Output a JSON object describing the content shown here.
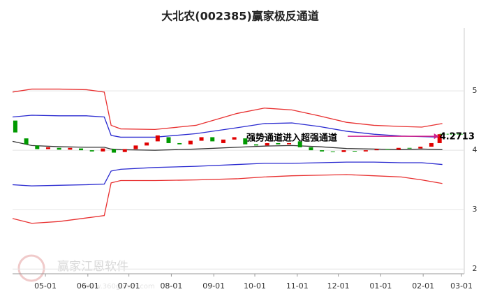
{
  "chart_data": {
    "type": "candlestick",
    "title": "大北农(002385)赢家极反通道",
    "watermark": "赢家江恩软件",
    "watermark_url": "www.360ganen.com",
    "annotation": "强势通道进入超强通道",
    "last_price": 4.2713,
    "xlim": [
      -24,
      306
    ],
    "xticks": [
      {
        "value": 0,
        "label": "05-01"
      },
      {
        "value": 31,
        "label": "06-01"
      },
      {
        "value": 61,
        "label": "07-01"
      },
      {
        "value": 92,
        "label": "08-01"
      },
      {
        "value": 123,
        "label": "09-01"
      },
      {
        "value": 153,
        "label": "10-01"
      },
      {
        "value": 184,
        "label": "11-01"
      },
      {
        "value": 214,
        "label": "12-01"
      },
      {
        "value": 245,
        "label": "01-01"
      },
      {
        "value": 276,
        "label": "02-01"
      },
      {
        "value": 304,
        "label": "03-01"
      }
    ],
    "ylim": [
      1.92,
      6.06
    ],
    "yticks": [
      2,
      3,
      4,
      5
    ],
    "grid": true,
    "band_x": [
      -24,
      -10,
      10,
      30,
      43,
      48,
      55,
      80,
      110,
      140,
      160,
      180,
      200,
      220,
      240,
      260,
      275,
      290
    ],
    "bands": [
      {
        "color": "#e83030",
        "values": [
          4.98,
          5.03,
          5.03,
          5.02,
          4.98,
          4.42,
          4.36,
          4.35,
          4.42,
          4.62,
          4.71,
          4.68,
          4.58,
          4.47,
          4.42,
          4.4,
          4.39,
          4.45
        ]
      },
      {
        "color": "#2a2ad0",
        "values": [
          4.56,
          4.59,
          4.58,
          4.58,
          4.56,
          4.25,
          4.22,
          4.22,
          4.28,
          4.38,
          4.45,
          4.46,
          4.4,
          4.32,
          4.27,
          4.24,
          4.23,
          4.22
        ]
      },
      {
        "color": "#333333",
        "values": [
          4.15,
          4.08,
          4.06,
          4.05,
          4.05,
          4.02,
          4.01,
          4.0,
          4.02,
          4.05,
          4.07,
          4.08,
          4.06,
          4.03,
          4.02,
          4.01,
          4.02,
          4.01
        ]
      },
      {
        "color": "#2a2ad0",
        "values": [
          3.42,
          3.4,
          3.41,
          3.42,
          3.43,
          3.65,
          3.68,
          3.71,
          3.73,
          3.76,
          3.78,
          3.78,
          3.79,
          3.8,
          3.8,
          3.79,
          3.79,
          3.76
        ]
      },
      {
        "color": "#e83030",
        "values": [
          2.85,
          2.77,
          2.8,
          2.86,
          2.9,
          3.45,
          3.49,
          3.49,
          3.5,
          3.52,
          3.55,
          3.57,
          3.58,
          3.59,
          3.57,
          3.55,
          3.5,
          3.44
        ]
      }
    ],
    "up_color": "#e00000",
    "down_color": "#009900",
    "candles": {
      "x": [
        -22,
        -14,
        -6,
        2,
        10,
        18,
        26,
        34,
        42,
        50,
        58,
        66,
        74,
        82,
        90,
        98,
        106,
        114,
        122,
        130,
        138,
        146,
        154,
        162,
        170,
        178,
        186,
        194,
        202,
        210,
        218,
        226,
        234,
        242,
        250,
        258,
        266,
        274,
        282,
        288
      ],
      "open": [
        4.5,
        4.2,
        4.08,
        4.02,
        4.04,
        4.01,
        4.03,
        4.0,
        3.98,
        4.02,
        3.97,
        4.02,
        4.08,
        4.15,
        4.22,
        4.12,
        4.1,
        4.16,
        4.22,
        4.12,
        4.18,
        4.2,
        4.1,
        4.08,
        4.12,
        4.1,
        4.15,
        4.05,
        4.0,
        3.98,
        3.97,
        3.99,
        3.98,
        4.0,
        4.02,
        4.01,
        4.04,
        4.03,
        4.06,
        4.12
      ],
      "close": [
        4.3,
        4.1,
        4.02,
        4.05,
        4.01,
        4.04,
        4.0,
        3.98,
        4.03,
        3.96,
        4.02,
        4.08,
        4.13,
        4.25,
        4.12,
        4.1,
        4.16,
        4.22,
        4.15,
        4.18,
        4.22,
        4.1,
        4.08,
        4.12,
        4.1,
        4.12,
        4.05,
        4.0,
        3.98,
        3.97,
        4.0,
        3.98,
        4.0,
        4.02,
        4.01,
        4.04,
        4.03,
        4.06,
        4.12,
        4.27
      ]
    }
  }
}
